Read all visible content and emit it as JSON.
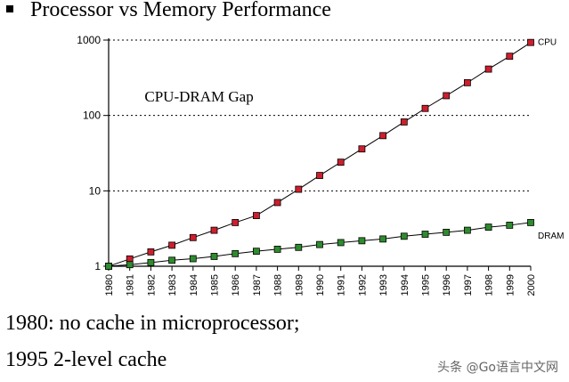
{
  "slide": {
    "title": "Processor vs Memory Performance",
    "notes": [
      "1980: no cache in microprocessor;",
      "1995 2-level cache"
    ],
    "watermark": "头条 @Go语言中文网"
  },
  "chart_data": {
    "type": "line",
    "yscale": "log",
    "ylim": [
      1,
      1000
    ],
    "yticks": [
      1,
      10,
      100,
      1000
    ],
    "ytick_labels": [
      "1",
      "10",
      "100",
      "1000"
    ],
    "grid": "horizontal-dotted",
    "annotation": "CPU-DRAM Gap",
    "x": [
      "1980",
      "1981",
      "1982",
      "1983",
      "1984",
      "1985",
      "1986",
      "1987",
      "1988",
      "1989",
      "1990",
      "1991",
      "1992",
      "1993",
      "1994",
      "1995",
      "1996",
      "1997",
      "1998",
      "1999",
      "2000"
    ],
    "series": [
      {
        "name": "CPU",
        "color": "#cc1f2e",
        "values": [
          1,
          1.25,
          1.55,
          1.9,
          2.4,
          3.0,
          3.8,
          4.7,
          7.0,
          10.5,
          16,
          24,
          36,
          54,
          82,
          124,
          183,
          272,
          412,
          610,
          930
        ]
      },
      {
        "name": "DRAM",
        "color": "#2e8b2e",
        "values": [
          1,
          1.05,
          1.12,
          1.2,
          1.26,
          1.35,
          1.47,
          1.58,
          1.68,
          1.78,
          1.94,
          2.06,
          2.18,
          2.3,
          2.5,
          2.66,
          2.82,
          3.0,
          3.3,
          3.5,
          3.8
        ]
      }
    ]
  }
}
